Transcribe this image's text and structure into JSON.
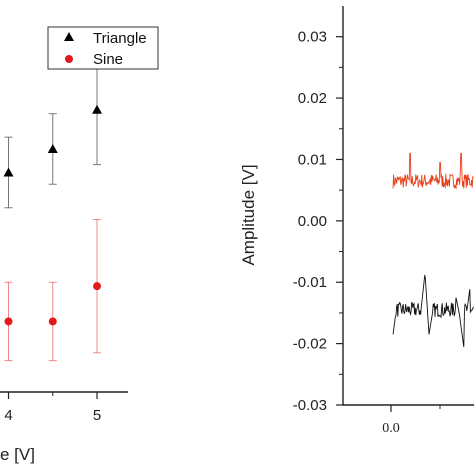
{
  "chart_data": [
    {
      "type": "scatter",
      "title": "",
      "xlabel": "e [V]",
      "ylabel": "",
      "x_tick_labels": [
        "4",
        "5"
      ],
      "xlim": [
        3.0,
        5.35
      ],
      "ylim": [
        0,
        1
      ],
      "legend": {
        "placement": "top-right",
        "entries": [
          "Triangle",
          "Sine"
        ]
      },
      "series": [
        {
          "name": "Triangle",
          "marker": "triangle",
          "color": "#000000",
          "points": [
            {
              "x": 4.0,
              "y": 0.56,
              "err": 0.09
            },
            {
              "x": 4.5,
              "y": 0.62,
              "err": 0.09
            },
            {
              "x": 5.0,
              "y": 0.72,
              "err": 0.14
            }
          ]
        },
        {
          "name": "Sine",
          "marker": "circle",
          "color": "#e31a1c",
          "points": [
            {
              "x": 4.0,
              "y": 0.18,
              "err": 0.1
            },
            {
              "x": 4.5,
              "y": 0.18,
              "err": 0.1
            },
            {
              "x": 5.0,
              "y": 0.27,
              "err": 0.17
            }
          ]
        }
      ]
    },
    {
      "type": "line",
      "title": "",
      "xlabel": "",
      "ylabel": "Amplitude [V]",
      "x_tick_labels": [
        "0.0"
      ],
      "y_tick_labels": [
        "0.03",
        "0.02",
        "0.01",
        "0.00",
        "-0.01",
        "-0.02",
        "-0.03"
      ],
      "ylim": [
        -0.03,
        0.035
      ],
      "grid": false,
      "series": [
        {
          "color": "#e8401c",
          "baseline": 0.0065,
          "noise": 0.0012
        },
        {
          "color": "#111111",
          "baseline": -0.0145,
          "noise": 0.0012
        }
      ]
    }
  ]
}
